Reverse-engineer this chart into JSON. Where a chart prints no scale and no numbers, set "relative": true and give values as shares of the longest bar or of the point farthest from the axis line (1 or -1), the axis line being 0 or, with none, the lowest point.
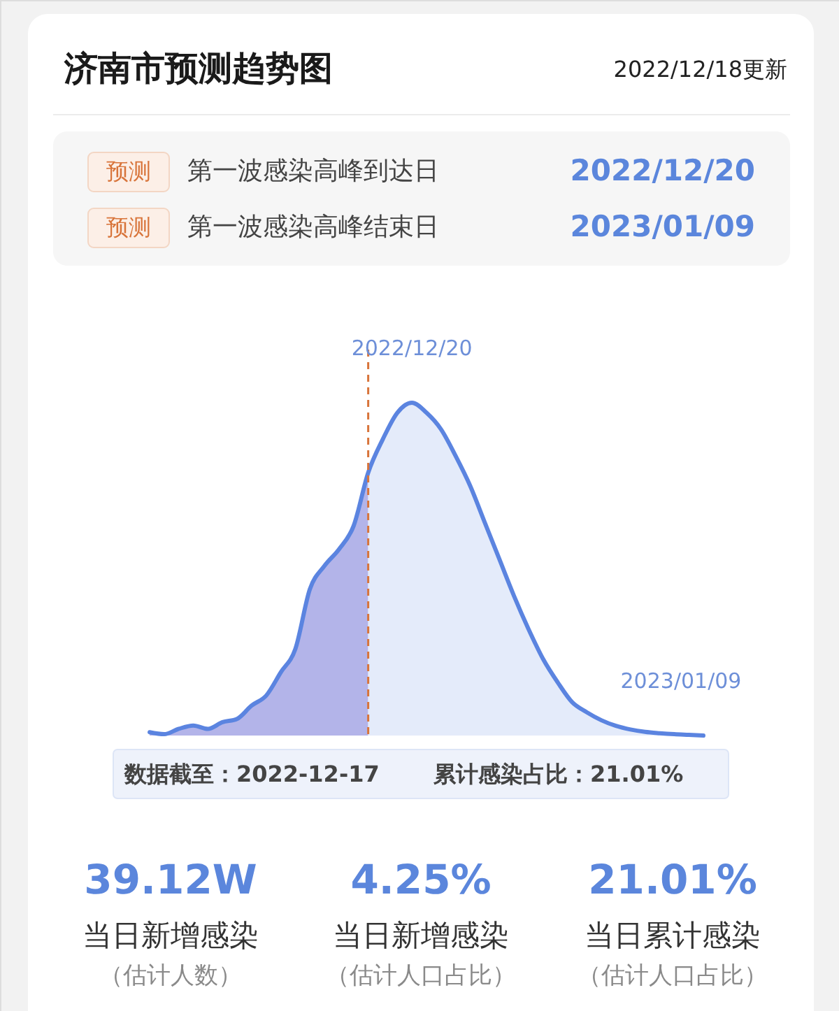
{
  "chart_data": {
    "type": "area",
    "title": "济南市预测趋势图",
    "subtitle": "2022/12/18更新",
    "relative": true,
    "categories": [
      null,
      null,
      null,
      null,
      null,
      null,
      null,
      null,
      null,
      null,
      null,
      null,
      null,
      null,
      null,
      null,
      null,
      null,
      null,
      null,
      null,
      null,
      null,
      null,
      null,
      null,
      null,
      null,
      null,
      null,
      null,
      null,
      null,
      null,
      null,
      null,
      null,
      null,
      null
    ],
    "series": [
      {
        "color": "#b3b4e9",
        "values": [
          0.01,
          0.004,
          0.02,
          0.03,
          0.02,
          0.04,
          0.05,
          0.09,
          0.12,
          0.19,
          0.26,
          0.44,
          0.51,
          0.56,
          0.63,
          0.79,
          null,
          null,
          null,
          null,
          null,
          null,
          null,
          null,
          null,
          null,
          null,
          null,
          null,
          null,
          null,
          null,
          null,
          null,
          null,
          null,
          null,
          null,
          null
        ]
      },
      {
        "color": "#e4ebfa",
        "values": [
          null,
          null,
          null,
          null,
          null,
          null,
          null,
          null,
          null,
          null,
          null,
          null,
          null,
          null,
          null,
          0.79,
          0.89,
          0.97,
          1.0,
          0.97,
          0.92,
          0.84,
          0.75,
          0.64,
          0.53,
          0.42,
          0.32,
          0.23,
          0.16,
          0.1,
          0.07,
          0.046,
          0.029,
          0.018,
          0.011,
          0.007,
          0.004,
          0.002,
          0.0
        ]
      },
      {
        "type": "line",
        "color": "#5b84e0",
        "values": [
          0.01,
          0.004,
          0.02,
          0.03,
          0.02,
          0.04,
          0.05,
          0.09,
          0.12,
          0.19,
          0.26,
          0.44,
          0.51,
          0.56,
          0.63,
          0.79,
          0.89,
          0.97,
          1.0,
          0.97,
          0.92,
          0.84,
          0.75,
          0.64,
          0.53,
          0.42,
          0.32,
          0.23,
          0.16,
          0.1,
          0.07,
          0.046,
          0.029,
          0.018,
          0.011,
          0.007,
          0.004,
          0.002,
          0.0
        ]
      }
    ],
    "annotations": [
      "预测",
      "第一波感染高峰到达日",
      "2022/12/20",
      "预测",
      "第一波感染高峰结束日",
      "2023/01/09",
      {
        "text": "2022/12/20",
        "y": 1.0
      },
      {
        "text": "2023/01/09",
        "y": 0.0
      },
      "数据截至：2022-12-17",
      "累计感染占比：21.01%",
      "39.12W",
      "当日新增感染",
      "（估计人数）",
      "4.25%",
      "当日新增感染",
      "（估计人口占比）",
      "21.01%",
      "当日累计感染",
      "（估计人口占比）"
    ]
  }
}
